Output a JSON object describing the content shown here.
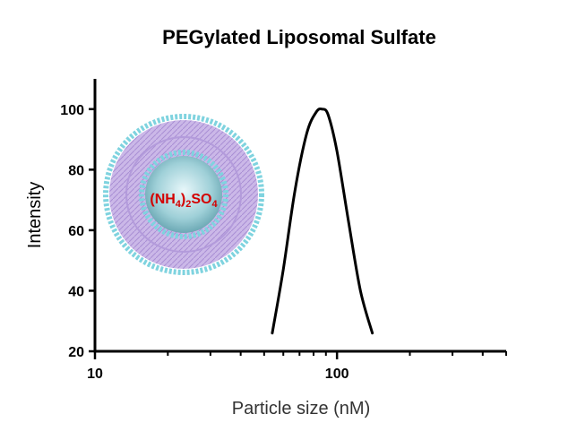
{
  "chart_data": {
    "type": "line",
    "title": "PEGylated Liposomal Sulfate",
    "xlabel": "Particle size (nM)",
    "ylabel": "Intensity",
    "x_scale": "log",
    "xlim": [
      10,
      500
    ],
    "ylim": [
      20,
      110
    ],
    "x_ticks": [
      10,
      100
    ],
    "y_ticks": [
      20,
      40,
      60,
      80,
      100
    ],
    "grid": false,
    "series": [
      {
        "x": [
          54,
          60,
          67,
          75,
          82,
          87,
          92,
          100,
          112,
          125,
          140
        ],
        "y": [
          26,
          47,
          73,
          92,
          99,
          100,
          98,
          86,
          62,
          40,
          26
        ],
        "color": "#000000"
      }
    ],
    "annotation": {
      "salt_formula": {
        "open": "(NH",
        "sub1": "4",
        "close": ")",
        "sub2": "2",
        "rest": "SO",
        "sub3": "4"
      },
      "colors": {
        "bilayer": "#c9b6e6",
        "headgroup": "#7fd3df",
        "core": "#79b7c4",
        "text": "#d40000"
      }
    }
  }
}
